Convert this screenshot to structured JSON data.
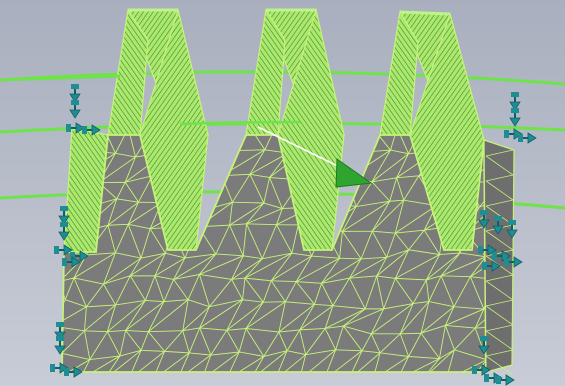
{
  "viewport": {
    "background_top": "#a9afbe",
    "background_bottom": "#c8ccd6"
  },
  "colors": {
    "mesh_face": "#7b7b7b",
    "mesh_face_dark": "#6e6e6e",
    "mesh_line": "#c7f27a",
    "tooth_flank": "#a6ec6a",
    "tooth_flank_light": "#bff28c",
    "flank_hatch": "#5a6b3c",
    "guide_ring": "#6ee34a",
    "constraint": "#1f8e94",
    "constraint_dark": "#0f5f64",
    "force_arrow": "#2fa52f",
    "force_line": "#ffffff"
  },
  "icons": {
    "constraint": "fixed-constraint-icon",
    "load": "force-arrow-icon"
  }
}
